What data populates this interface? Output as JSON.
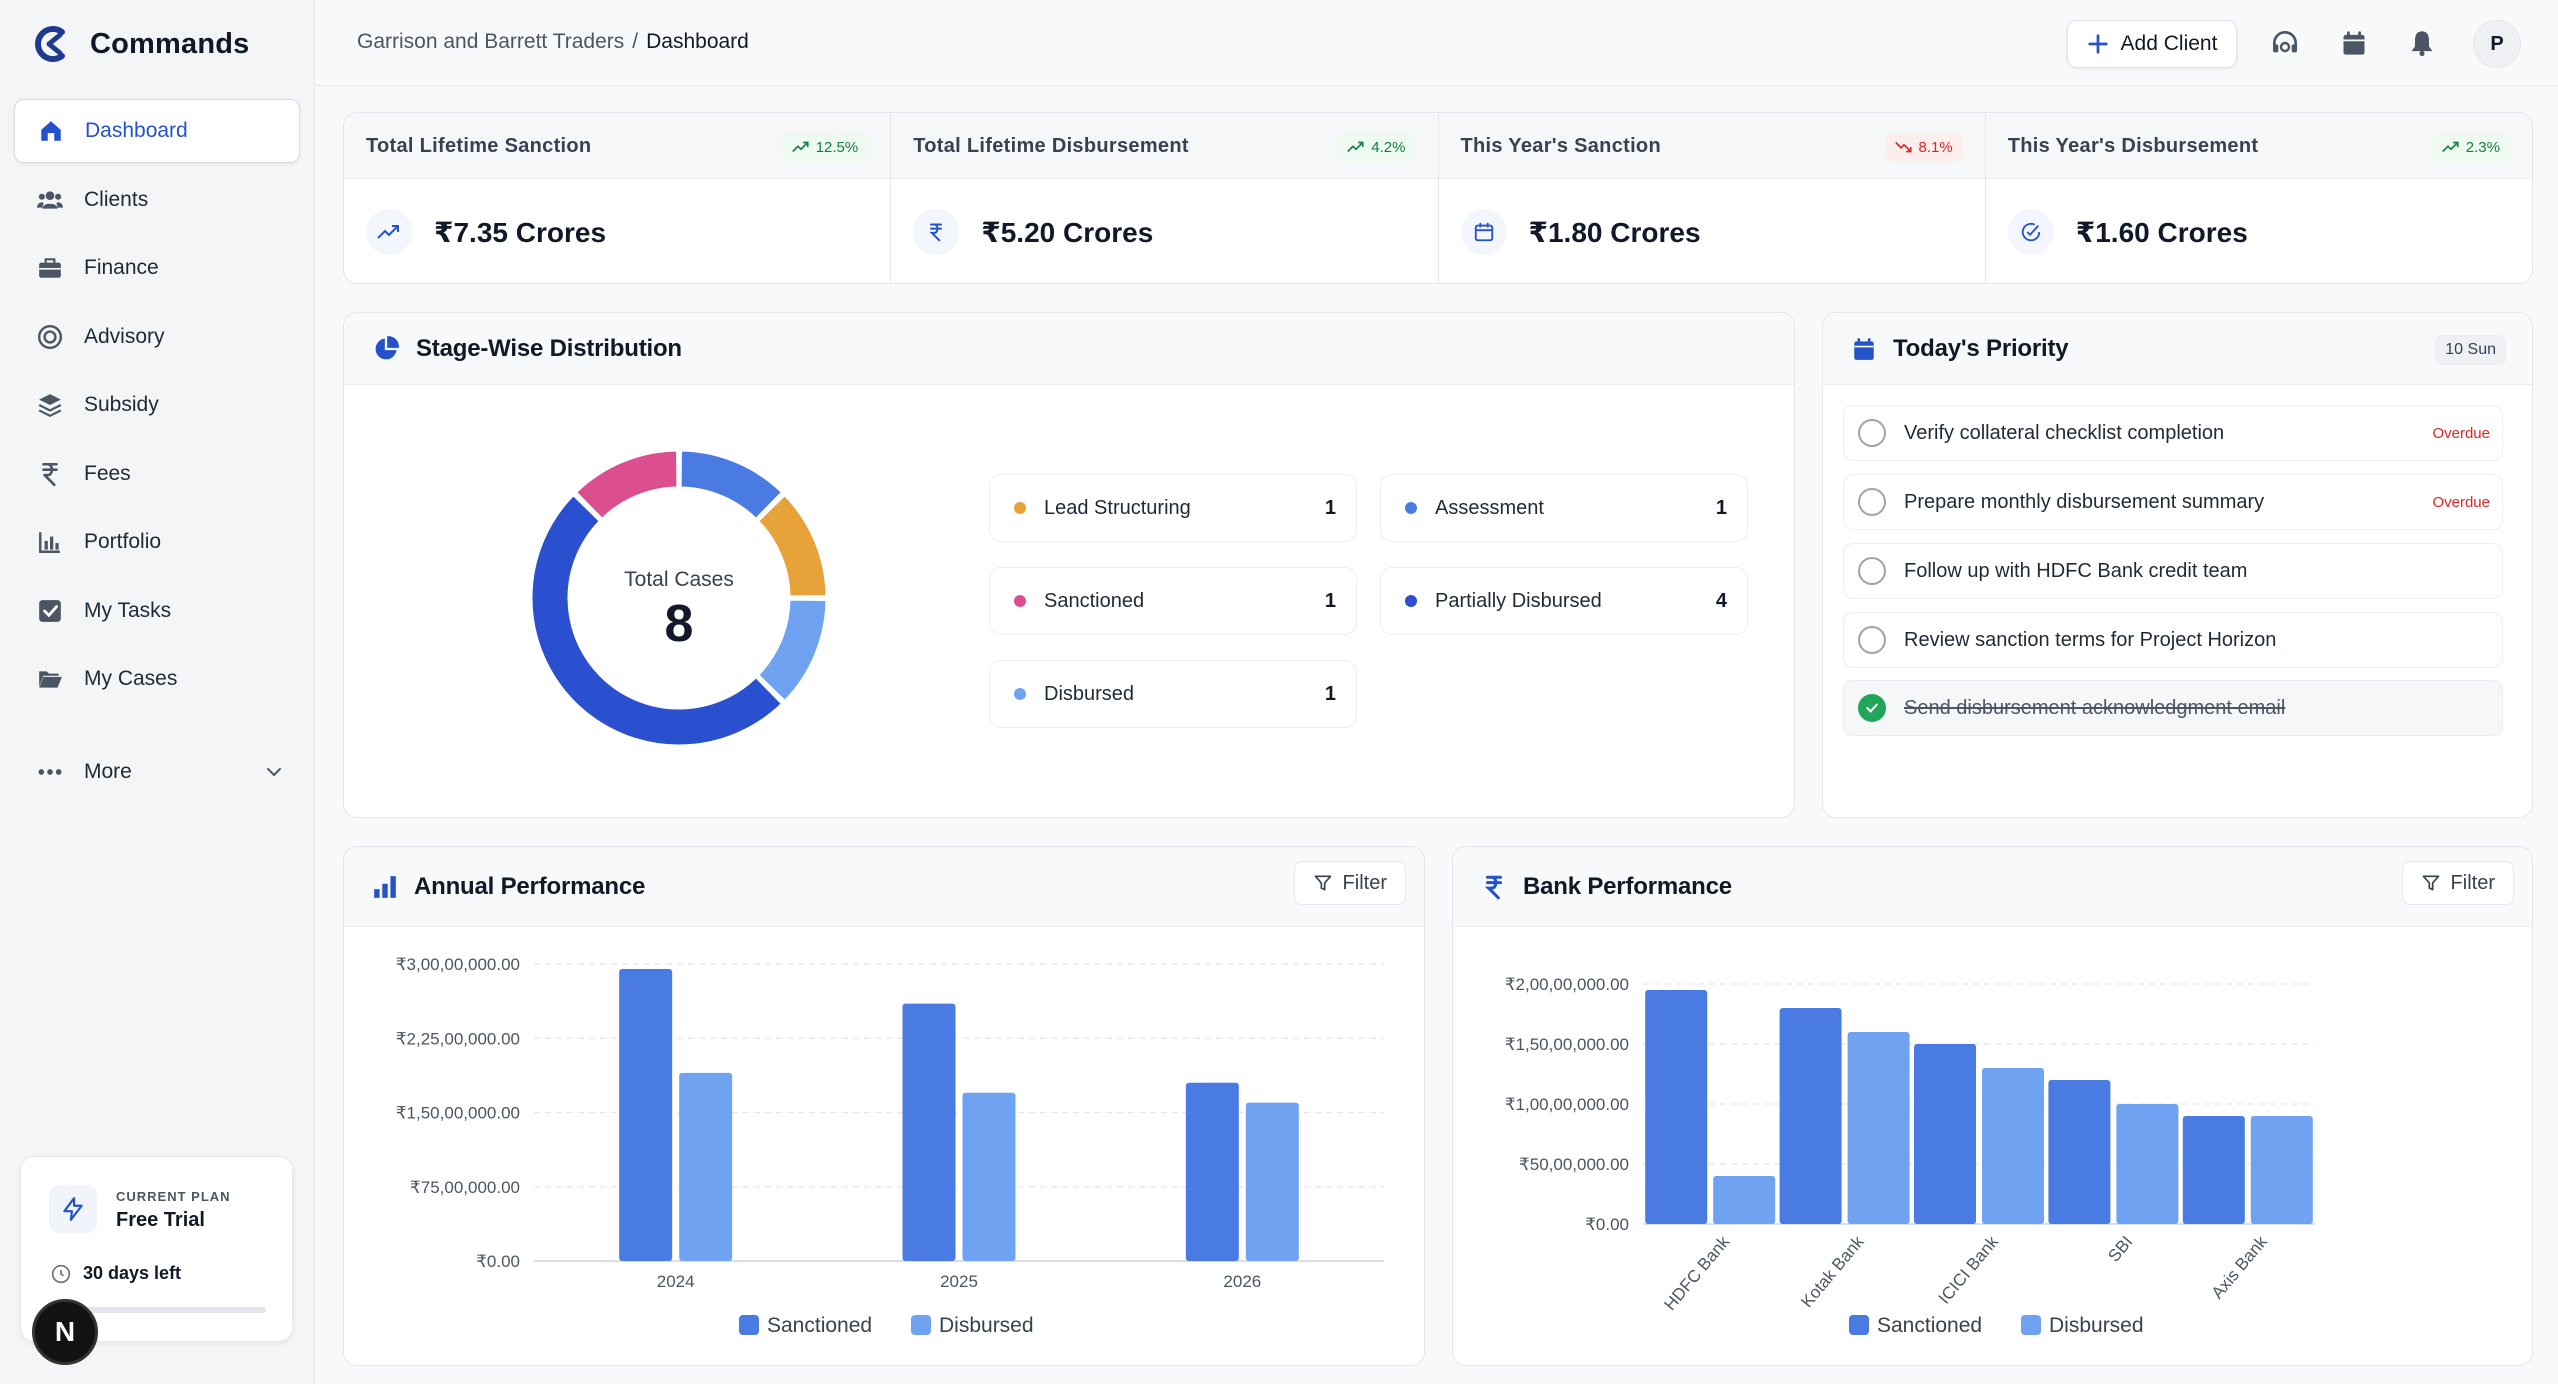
{
  "app": {
    "name": "Commands"
  },
  "sidebar": {
    "items": [
      {
        "label": "Dashboard",
        "icon": "home-icon"
      },
      {
        "label": "Clients",
        "icon": "users-icon"
      },
      {
        "label": "Finance",
        "icon": "briefcase-icon"
      },
      {
        "label": "Advisory",
        "icon": "target-icon"
      },
      {
        "label": "Subsidy",
        "icon": "layers-icon"
      },
      {
        "label": "Fees",
        "icon": "rupee-icon"
      },
      {
        "label": "Portfolio",
        "icon": "bar-chart-icon"
      },
      {
        "label": "My Tasks",
        "icon": "check-square-icon"
      },
      {
        "label": "My Cases",
        "icon": "folder-icon"
      }
    ],
    "more_label": "More",
    "plan": {
      "kicker": "CURRENT PLAN",
      "name": "Free Trial",
      "days_left": "30 days left"
    },
    "badge_letter": "N"
  },
  "topbar": {
    "breadcrumb": {
      "parent": "Garrison and Barrett Traders",
      "sep": "/",
      "current": "Dashboard"
    },
    "add_client_label": "Add Client",
    "avatar_letter": "P"
  },
  "stats": [
    {
      "label": "Total Lifetime Sanction",
      "change": "12.5%",
      "trend": "up",
      "value": "₹7.35 Crores"
    },
    {
      "label": "Total Lifetime Disbursement",
      "change": "4.2%",
      "trend": "up",
      "value": "₹5.20 Crores"
    },
    {
      "label": "This Year's Sanction",
      "change": "8.1%",
      "trend": "down",
      "value": "₹1.80 Crores"
    },
    {
      "label": "This Year's Disbursement",
      "change": "2.3%",
      "trend": "up",
      "value": "₹1.60 Crores"
    }
  ],
  "stage": {
    "title": "Stage-Wise Distribution",
    "center_label": "Total Cases",
    "center_value": "8",
    "items": [
      {
        "label": "Lead Structuring",
        "count": "1",
        "color": "#e8a23a"
      },
      {
        "label": "Assessment",
        "count": "1",
        "color": "#4a7be2"
      },
      {
        "label": "Sanctioned",
        "count": "1",
        "color": "#dc4f8f"
      },
      {
        "label": "Partially Disbursed",
        "count": "4",
        "color": "#2a4fcf"
      },
      {
        "label": "Disbursed",
        "count": "1",
        "color": "#6fa2f0"
      }
    ]
  },
  "priority": {
    "title": "Today's Priority",
    "date": "10 Sun",
    "tasks": [
      {
        "label": "Verify collateral checklist completion",
        "status": "Overdue",
        "done": false
      },
      {
        "label": "Prepare monthly disbursement summary",
        "status": "Overdue",
        "done": false
      },
      {
        "label": "Follow up with HDFC Bank credit team",
        "status": "",
        "done": false
      },
      {
        "label": "Review sanction terms for Project Horizon",
        "status": "",
        "done": false
      },
      {
        "label": "Send disbursement acknowledgment email",
        "status": "",
        "done": true
      }
    ]
  },
  "annual": {
    "title": "Annual Performance",
    "filter_label": "Filter",
    "legend": [
      "Sanctioned",
      "Disbursed"
    ]
  },
  "bank": {
    "title": "Bank Performance",
    "filter_label": "Filter",
    "legend": [
      "Sanctioned",
      "Disbursed"
    ]
  },
  "chart_data": [
    {
      "type": "donut",
      "title": "Stage-Wise Distribution",
      "categories": [
        "Lead Structuring",
        "Assessment",
        "Sanctioned",
        "Partially Disbursed",
        "Disbursed"
      ],
      "values": [
        1,
        1,
        1,
        4,
        1
      ],
      "colors": [
        "#e8a23a",
        "#4a7be2",
        "#dc4f8f",
        "#2a4fcf",
        "#6fa2f0"
      ]
    },
    {
      "type": "bar",
      "title": "Annual Performance",
      "categories": [
        "2024",
        "2025",
        "2026"
      ],
      "series": [
        {
          "name": "Sanctioned",
          "values": [
            29500000,
            26000000,
            18000000
          ],
          "color": "#4a7be2"
        },
        {
          "name": "Disbursed",
          "values": [
            19000000,
            17000000,
            16000000
          ],
          "color": "#6fa2f0"
        }
      ],
      "ylim": [
        0,
        30000000
      ],
      "yticks": [
        "₹0.00",
        "₹75,00,000.00",
        "₹1,50,00,000.00",
        "₹2,25,00,000.00",
        "₹3,00,00,000.00"
      ],
      "grid": true,
      "legend": "bottom"
    },
    {
      "type": "bar",
      "title": "Bank Performance",
      "categories": [
        "HDFC Bank",
        "Kotak Bank",
        "ICICI Bank",
        "SBI",
        "Axis Bank"
      ],
      "series": [
        {
          "name": "Sanctioned",
          "values": [
            19500000,
            18000000,
            15000000,
            12000000,
            9000000
          ],
          "color": "#4a7be2"
        },
        {
          "name": "Disbursed",
          "values": [
            4000000,
            16000000,
            13000000,
            10000000,
            9000000
          ],
          "color": "#6fa2f0"
        }
      ],
      "ylim": [
        0,
        20000000
      ],
      "yticks": [
        "₹0.00",
        "₹50,00,000.00",
        "₹1,00,00,000.00",
        "₹1,50,00,000.00",
        "₹2,00,00,000.00"
      ],
      "grid": true,
      "legend": "bottom"
    }
  ]
}
